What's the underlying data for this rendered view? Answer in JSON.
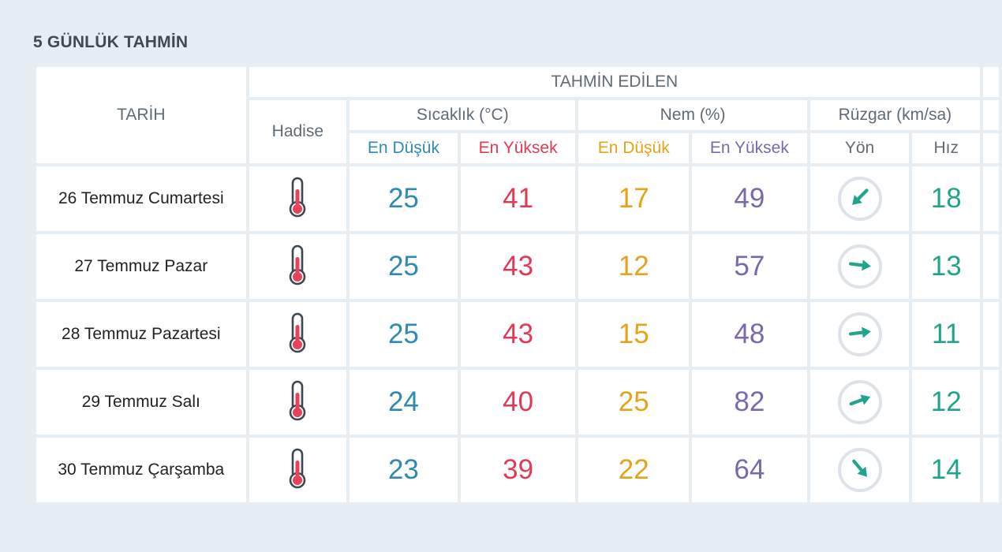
{
  "section": {
    "title": "5 GÜNLÜK TAHMİN"
  },
  "colors": {
    "min_temp": "#2d8bb3",
    "max_temp": "#e03a55",
    "min_humidity": "#e6a318",
    "max_humidity": "#7a68ad",
    "wind_speed": "#1fa58c",
    "page_background": "#e7eef3"
  },
  "headers": {
    "date": "TARİH",
    "forecast_group": "TAHMİN EDİLEN",
    "condition": "Hadise",
    "temperature": "Sıcaklık (°C)",
    "humidity": "Nem (%)",
    "wind": "Rüzgar (km/sa)",
    "min": "En Düşük",
    "max": "En Yüksek",
    "direction": "Yön",
    "speed": "Hız"
  },
  "days": [
    {
      "date": "26 Temmuz Cumartesi",
      "condition_icon": "thermometer-icon",
      "temp_min": "25",
      "temp_max": "41",
      "humidity_min": "17",
      "humidity_max": "49",
      "wind_direction_icon": "arrow-down-left-icon",
      "wind_arrow_degrees": 225,
      "wind_speed": "18"
    },
    {
      "date": "27 Temmuz Pazar",
      "condition_icon": "thermometer-icon",
      "temp_min": "25",
      "temp_max": "43",
      "humidity_min": "12",
      "humidity_max": "57",
      "wind_direction_icon": "arrow-right-icon",
      "wind_arrow_degrees": 97,
      "wind_speed": "13"
    },
    {
      "date": "28 Temmuz Pazartesi",
      "condition_icon": "thermometer-icon",
      "temp_min": "25",
      "temp_max": "43",
      "humidity_min": "15",
      "humidity_max": "48",
      "wind_direction_icon": "arrow-right-icon",
      "wind_arrow_degrees": 83,
      "wind_speed": "11"
    },
    {
      "date": "29 Temmuz Salı",
      "condition_icon": "thermometer-icon",
      "temp_min": "24",
      "temp_max": "40",
      "humidity_min": "25",
      "humidity_max": "82",
      "wind_direction_icon": "arrow-up-right-icon",
      "wind_arrow_degrees": 70,
      "wind_speed": "12"
    },
    {
      "date": "30 Temmuz Çarşamba",
      "condition_icon": "thermometer-icon",
      "temp_min": "23",
      "temp_max": "39",
      "humidity_min": "22",
      "humidity_max": "64",
      "wind_direction_icon": "arrow-down-right-icon",
      "wind_arrow_degrees": 140,
      "wind_speed": "14"
    }
  ]
}
